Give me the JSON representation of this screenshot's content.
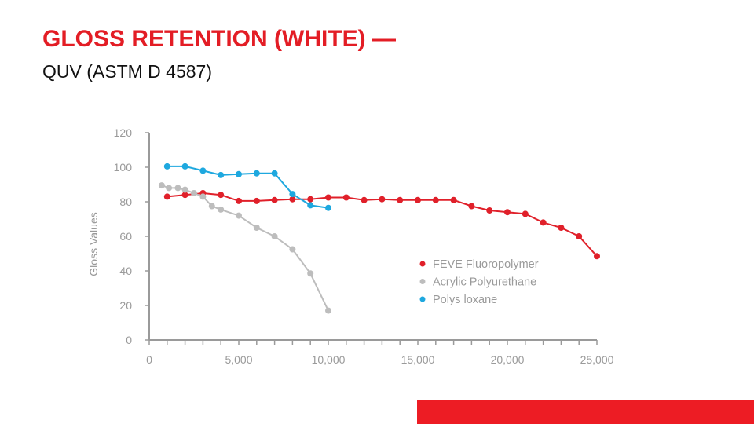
{
  "slide": {
    "title": "GLOSS RETENTION (WHITE) —",
    "subtitle": "QUV (ASTM D 4587)",
    "title_color": "#e31d25",
    "accent_bar_color": "#ed1c24"
  },
  "chart_data": {
    "type": "line",
    "title": "",
    "xlabel": "",
    "ylabel": "Gloss Values",
    "xlim": [
      0,
      25000
    ],
    "ylim": [
      0,
      120
    ],
    "x_ticks": [
      0,
      5000,
      10000,
      15000,
      20000,
      25000
    ],
    "x_tick_labels": [
      "0",
      "5,000",
      "10,000",
      "15,000",
      "20,000",
      "25,000"
    ],
    "y_ticks": [
      0,
      20,
      40,
      60,
      80,
      100,
      120
    ],
    "y_tick_labels": [
      "0",
      "20",
      "40",
      "60",
      "80",
      "100",
      "120"
    ],
    "grid": false,
    "legend_position": "center-right",
    "series": [
      {
        "name": "FEVE Fluoropolymer",
        "color": "#e0202a",
        "points": [
          [
            1000,
            83
          ],
          [
            2000,
            84
          ],
          [
            3000,
            85
          ],
          [
            4000,
            84
          ],
          [
            5000,
            80.5
          ],
          [
            6000,
            80.5
          ],
          [
            7000,
            81
          ],
          [
            8000,
            81.5
          ],
          [
            9000,
            81.5
          ],
          [
            10000,
            82.5
          ],
          [
            11000,
            82.5
          ],
          [
            12000,
            81
          ],
          [
            13000,
            81.5
          ],
          [
            14000,
            81
          ],
          [
            15000,
            81
          ],
          [
            16000,
            81
          ],
          [
            17000,
            81
          ],
          [
            18000,
            77.5
          ],
          [
            19000,
            75
          ],
          [
            20000,
            74
          ],
          [
            21000,
            73
          ],
          [
            22000,
            68
          ],
          [
            23000,
            65
          ],
          [
            24000,
            60
          ],
          [
            25000,
            48.5
          ]
        ]
      },
      {
        "name": "Acrylic Polyurethane",
        "color": "#bdbdbd",
        "points": [
          [
            700,
            89.5
          ],
          [
            1100,
            88
          ],
          [
            1600,
            88
          ],
          [
            2000,
            87
          ],
          [
            2500,
            85
          ],
          [
            3000,
            83
          ],
          [
            3500,
            77.5
          ],
          [
            4000,
            75.5
          ],
          [
            5000,
            72
          ],
          [
            6000,
            65
          ],
          [
            7000,
            60
          ],
          [
            8000,
            52.5
          ],
          [
            9000,
            38.5
          ],
          [
            10000,
            17
          ]
        ]
      },
      {
        "name": "Polys loxane",
        "color": "#1ea8df",
        "points": [
          [
            1000,
            100.5
          ],
          [
            2000,
            100.5
          ],
          [
            3000,
            98
          ],
          [
            4000,
            95.5
          ],
          [
            5000,
            96
          ],
          [
            6000,
            96.5
          ],
          [
            7000,
            96.5
          ],
          [
            8000,
            84.5
          ],
          [
            9000,
            78
          ],
          [
            10000,
            76.5
          ]
        ]
      }
    ]
  }
}
